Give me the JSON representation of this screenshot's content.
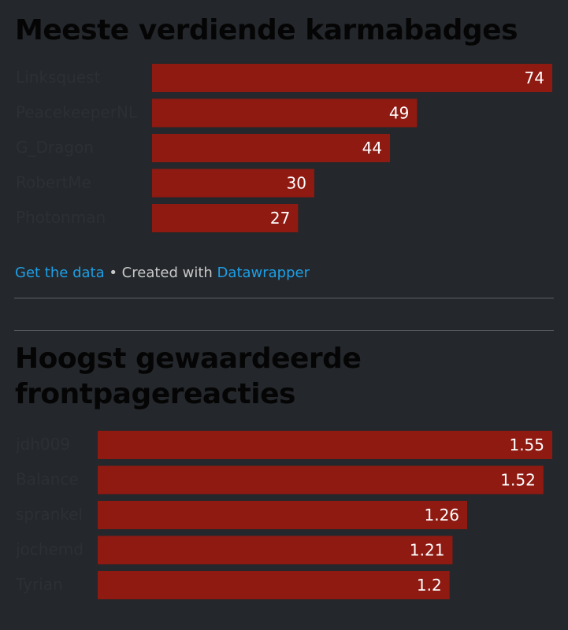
{
  "chart_data": [
    {
      "type": "bar",
      "orientation": "horizontal",
      "title": "Meeste verdiende karmabadges",
      "categories": [
        "Linksquest",
        "PeacekeeperNL",
        "G_Dragon",
        "RobertMe",
        "Photonman"
      ],
      "values": [
        74,
        49,
        44,
        30,
        27
      ],
      "value_labels": [
        "74",
        "49",
        "44",
        "30",
        "27"
      ],
      "xlim": [
        0,
        74
      ],
      "bar_color": "#8e1a12",
      "xlabel": "",
      "ylabel": ""
    },
    {
      "type": "bar",
      "orientation": "horizontal",
      "title": "Hoogst gewaardeerde frontpagereacties",
      "categories": [
        "jdh009",
        "Balance",
        "sprankel",
        "jochemd",
        "Tyrian"
      ],
      "values": [
        1.55,
        1.52,
        1.26,
        1.21,
        1.2
      ],
      "value_labels": [
        "1.55",
        "1.52",
        "1.26",
        "1.21",
        "1.2"
      ],
      "xlim": [
        0,
        1.55
      ],
      "bar_color": "#8e1a12",
      "xlabel": "",
      "ylabel": ""
    }
  ],
  "footer": {
    "get_data_label": "Get the data",
    "separator": " • Created with ",
    "datawrapper_label": "Datawrapper"
  },
  "colors": {
    "background": "#24272b",
    "bar": "#8e1a12",
    "link": "#1d9fe6",
    "title": "#050505",
    "category_label": "#2c3035"
  }
}
